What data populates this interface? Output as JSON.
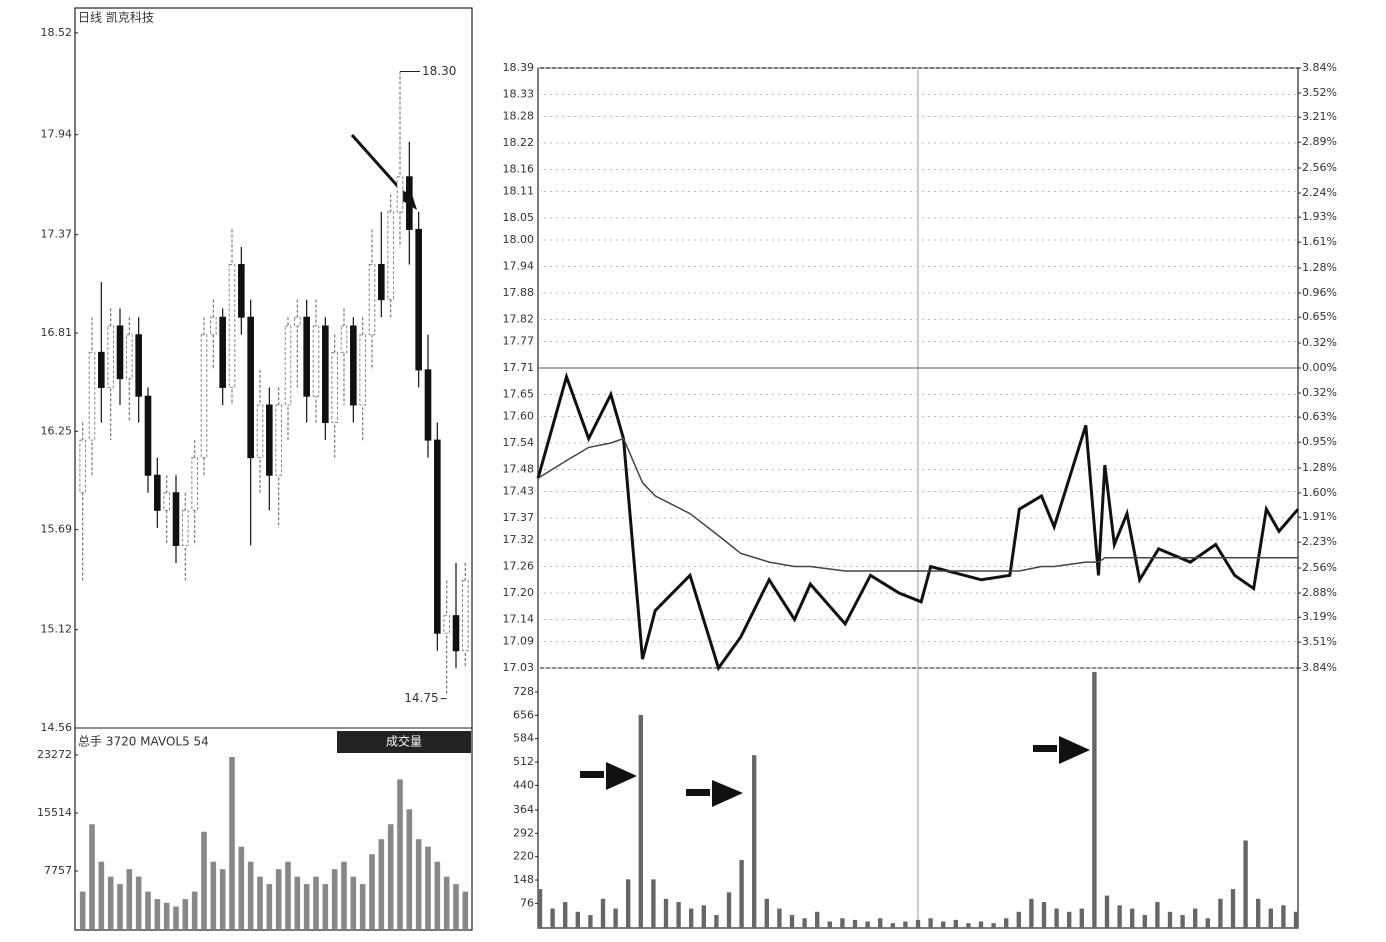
{
  "chart_data": [
    {
      "type": "candlestick",
      "title": "日线 凯克科技",
      "categories": [
        null,
        null,
        null,
        null,
        null,
        null,
        null,
        null,
        null,
        null,
        null,
        null,
        null,
        null,
        null,
        null,
        null,
        null,
        null,
        null,
        null,
        null,
        null,
        null,
        null,
        null,
        null,
        null,
        null,
        null,
        null,
        null,
        null,
        null,
        null,
        null,
        null,
        null,
        null,
        null,
        null,
        null
      ],
      "open": [
        15.9,
        16.2,
        16.7,
        16.5,
        16.85,
        16.55,
        16.8,
        16.45,
        16.0,
        15.8,
        15.9,
        15.6,
        15.8,
        16.1,
        16.8,
        16.9,
        16.5,
        17.2,
        16.9,
        16.1,
        16.4,
        16.0,
        16.4,
        16.85,
        16.9,
        16.45,
        16.85,
        16.3,
        16.7,
        16.85,
        16.4,
        16.8,
        17.2,
        17.0,
        17.5,
        17.7,
        17.4,
        16.6,
        16.2,
        15.1,
        15.2,
        15.0
      ],
      "high": [
        16.3,
        16.9,
        17.1,
        16.95,
        16.95,
        16.9,
        16.9,
        16.5,
        16.1,
        16.0,
        16.0,
        15.9,
        16.2,
        16.9,
        17.0,
        16.95,
        17.4,
        17.3,
        17.0,
        16.6,
        16.5,
        16.5,
        16.9,
        17.0,
        17.0,
        17.0,
        16.9,
        16.8,
        16.95,
        16.9,
        16.9,
        17.4,
        17.5,
        17.6,
        18.3,
        17.9,
        17.5,
        16.8,
        16.3,
        15.4,
        15.5,
        15.5
      ],
      "low": [
        15.4,
        16.0,
        16.3,
        16.2,
        16.4,
        16.3,
        16.3,
        15.9,
        15.7,
        15.6,
        15.5,
        15.4,
        15.6,
        16.0,
        16.6,
        16.4,
        16.4,
        16.8,
        15.6,
        15.9,
        15.8,
        15.7,
        16.2,
        16.5,
        16.3,
        16.3,
        16.2,
        16.1,
        16.4,
        16.3,
        16.2,
        16.6,
        16.9,
        16.9,
        17.3,
        17.2,
        16.5,
        16.1,
        15.0,
        14.75,
        14.9,
        14.9
      ],
      "close": [
        16.2,
        16.7,
        16.5,
        16.85,
        16.55,
        16.8,
        16.45,
        16.0,
        15.8,
        15.9,
        15.6,
        15.8,
        16.1,
        16.8,
        16.9,
        16.5,
        17.2,
        16.9,
        16.1,
        16.4,
        16.0,
        16.4,
        16.85,
        16.9,
        16.45,
        16.85,
        16.3,
        16.7,
        16.85,
        16.4,
        16.8,
        17.2,
        17.0,
        17.5,
        17.7,
        17.4,
        16.6,
        16.2,
        15.1,
        15.2,
        15.0,
        15.4
      ],
      "ylim": [
        14.56,
        18.65
      ],
      "yticks": [
        18.52,
        17.94,
        17.37,
        16.81,
        16.25,
        15.69,
        15.12,
        14.56
      ],
      "annotations": [
        {
          "label": "18.30",
          "value": 18.3,
          "index": 34
        },
        {
          "label": "14.75",
          "value": 14.75,
          "index": 39
        }
      ]
    },
    {
      "type": "bar",
      "title": "总手 3720 MAVOL5 54",
      "button": "成交量",
      "color": "#888",
      "categories": [
        null,
        null,
        null,
        null,
        null,
        null,
        null,
        null,
        null,
        null,
        null,
        null,
        null,
        null,
        null,
        null,
        null,
        null,
        null,
        null,
        null,
        null,
        null,
        null,
        null,
        null,
        null,
        null,
        null,
        null,
        null,
        null,
        null,
        null,
        null,
        null,
        null,
        null,
        null,
        null,
        null,
        null
      ],
      "values": [
        5000,
        14000,
        9000,
        7000,
        6000,
        8000,
        7000,
        5000,
        4000,
        3500,
        3000,
        4000,
        5000,
        13000,
        9000,
        8000,
        23000,
        11000,
        9000,
        7000,
        6000,
        8000,
        9000,
        7000,
        6000,
        7000,
        6000,
        8000,
        9000,
        7000,
        6000,
        10000,
        12000,
        14000,
        20000,
        16000,
        12000,
        11000,
        9000,
        7000,
        6000,
        5000
      ],
      "ylim": [
        0,
        26600
      ],
      "yticks": [
        23272,
        15514,
        7757
      ]
    },
    {
      "type": "line",
      "xlim": [
        0,
        240
      ],
      "x": [
        0,
        9,
        16,
        23,
        27,
        33,
        37,
        48,
        57,
        64,
        73,
        81,
        86,
        97,
        105,
        114,
        121,
        124,
        140,
        149,
        152,
        159,
        163,
        173,
        177,
        179,
        182,
        186,
        190,
        196,
        206,
        214,
        220,
        226,
        230,
        234,
        240
      ],
      "series": [
        {
          "color": "#111",
          "values": [
            17.46,
            17.69,
            17.55,
            17.65,
            17.55,
            17.05,
            17.16,
            17.24,
            17.03,
            17.1,
            17.23,
            17.14,
            17.22,
            17.13,
            17.24,
            17.2,
            17.18,
            17.26,
            17.23,
            17.24,
            17.39,
            17.42,
            17.35,
            17.58,
            17.24,
            17.49,
            17.31,
            17.38,
            17.23,
            17.3,
            17.27,
            17.31,
            17.24,
            17.21,
            17.39,
            17.34,
            17.39
          ]
        },
        {
          "color": "#444",
          "values": [
            17.46,
            17.5,
            17.53,
            17.54,
            17.55,
            17.45,
            17.42,
            17.38,
            17.33,
            17.29,
            17.27,
            17.26,
            17.26,
            17.25,
            17.25,
            17.25,
            17.25,
            17.25,
            17.25,
            17.25,
            17.25,
            17.26,
            17.26,
            17.27,
            17.27,
            17.28,
            17.28,
            17.28,
            17.28,
            17.28,
            17.28,
            17.28,
            17.28,
            17.28,
            17.28,
            17.28,
            17.28
          ]
        }
      ],
      "ylim": [
        17.03,
        18.39
      ],
      "yticks": [
        18.39,
        18.33,
        18.28,
        18.22,
        18.16,
        18.11,
        18.05,
        {
          "value": 18,
          "label": "18.00"
        },
        17.94,
        17.88,
        17.82,
        17.77,
        17.71,
        17.65,
        {
          "value": 17.6,
          "label": "17.60"
        },
        17.54,
        17.48,
        17.43,
        17.37,
        17.32,
        17.26,
        {
          "value": 17.2,
          "label": "17.20"
        },
        17.14,
        17.09,
        17.03
      ],
      "prev_close": 17.71,
      "y2lim": [
        -3.84,
        3.84
      ],
      "y2ticks": [
        {
          "value": 3.84,
          "label": "3.84%"
        },
        {
          "value": 3.52,
          "label": "3.52%"
        },
        {
          "value": 3.21,
          "label": "3.21%"
        },
        {
          "value": 2.89,
          "label": "2.89%"
        },
        {
          "value": 2.56,
          "label": "2.56%"
        },
        {
          "value": 2.24,
          "label": "2.24%"
        },
        {
          "value": 1.93,
          "label": "1.93%"
        },
        {
          "value": 1.61,
          "label": "1.61%"
        },
        {
          "value": 1.28,
          "label": "1.28%"
        },
        {
          "value": 0.96,
          "label": "0.96%"
        },
        {
          "value": 0.65,
          "label": "0.65%"
        },
        {
          "value": 0.32,
          "label": "0.32%"
        },
        {
          "value": 0,
          "label": "0.00%"
        },
        {
          "value": -0.32,
          "label": "0.32%"
        },
        {
          "value": -0.63,
          "label": "0.63%"
        },
        {
          "value": -0.95,
          "label": "0.95%"
        },
        {
          "value": -1.28,
          "label": "1.28%"
        },
        {
          "value": -1.6,
          "label": "1.60%"
        },
        {
          "value": -1.91,
          "label": "1.91%"
        },
        {
          "value": -2.23,
          "label": "2.23%"
        },
        {
          "value": -2.56,
          "label": "2.56%"
        },
        {
          "value": -2.88,
          "label": "2.88%"
        },
        {
          "value": -3.19,
          "label": "3.19%"
        },
        {
          "value": -3.51,
          "label": "3.51%"
        },
        {
          "value": -3.84,
          "label": "3.84%"
        }
      ]
    },
    {
      "type": "bar",
      "color": "#666",
      "xlim": [
        0,
        240
      ],
      "x": [
        0,
        4,
        8,
        12,
        16,
        20,
        24,
        28,
        32,
        36,
        40,
        44,
        48,
        52,
        56,
        60,
        64,
        68,
        72,
        76,
        80,
        84,
        88,
        92,
        96,
        100,
        104,
        108,
        112,
        116,
        120,
        124,
        128,
        132,
        136,
        140,
        144,
        148,
        152,
        156,
        160,
        164,
        168,
        172,
        176,
        180,
        184,
        188,
        192,
        196,
        200,
        204,
        208,
        212,
        216,
        220,
        224,
        228,
        232,
        236,
        240
      ],
      "values": [
        120,
        60,
        80,
        50,
        40,
        90,
        60,
        150,
        657,
        150,
        90,
        80,
        60,
        70,
        40,
        110,
        210,
        533,
        90,
        60,
        40,
        30,
        50,
        20,
        30,
        25,
        20,
        30,
        15,
        20,
        25,
        30,
        20,
        25,
        15,
        20,
        15,
        30,
        50,
        90,
        80,
        60,
        50,
        60,
        790,
        100,
        70,
        60,
        40,
        80,
        50,
        40,
        60,
        30,
        90,
        120,
        270,
        90,
        60,
        70,
        50
      ],
      "ylim": [
        0,
        802
      ],
      "yticks": [
        728,
        656,
        584,
        512,
        440,
        364,
        292,
        220,
        148,
        76
      ]
    }
  ]
}
